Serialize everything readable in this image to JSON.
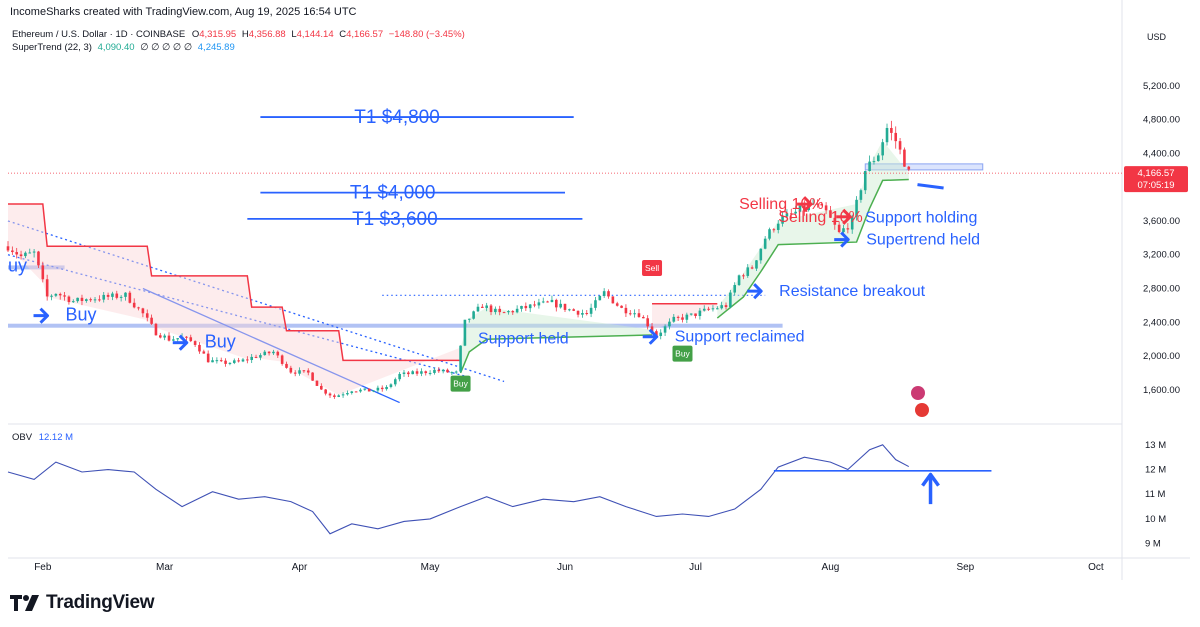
{
  "header": {
    "attribution": "IncomeSharks created with TradingView.com, Aug 19, 2025 16:54 UTC"
  },
  "legend": {
    "symbol": "Ethereum / U.S. Dollar · 1D · COINBASE",
    "o_label": "O",
    "o": "4,315.95",
    "h_label": "H",
    "h": "4,356.88",
    "l_label": "L",
    "l": "4,144.14",
    "c_label": "C",
    "c": "4,166.57",
    "change": "−148.80 (−3.45%)",
    "st_label": "SuperTrend (22, 3)",
    "st_value": "4,090.40",
    "st_empty": "∅ ∅ ∅ ∅ ∅",
    "st_value2": "4,245.89",
    "obv_label": "OBV",
    "obv_value": "12.12 M"
  },
  "price_badge": {
    "price": "4,166.57",
    "countdown": "07:05:19"
  },
  "brand": {
    "name": "TradingView"
  },
  "colors": {
    "up": "#22ab94",
    "down": "#f23645",
    "annotation": "#2962ff",
    "annotation_red": "#f23645",
    "supertrend_up": "#4caf50",
    "supertrend_down": "#f23645"
  },
  "annotations": [
    {
      "id": "t1-4800",
      "text": "T1 $4,800",
      "color": "blue",
      "price": 4830,
      "x_from": "2025-03-23",
      "x_to": "2025-06-03",
      "line": true
    },
    {
      "id": "t1-4000",
      "text": "T1 $4,000",
      "color": "blue",
      "price": 3935,
      "x_from": "2025-03-23",
      "x_to": "2025-06-01",
      "line": true
    },
    {
      "id": "t1-3600",
      "text": "T1 $3,600",
      "color": "blue",
      "price": 3625,
      "x_from": "2025-03-20",
      "x_to": "2025-06-05",
      "line": true
    },
    {
      "id": "buy-1",
      "text": "Buy",
      "color": "blue",
      "price": 2420,
      "x": "2025-02-03",
      "arrow": true
    },
    {
      "id": "buy-2",
      "text": "Buy",
      "color": "blue",
      "price": 2100,
      "x": "2025-03-07",
      "arrow": true
    },
    {
      "id": "buy-edge",
      "text": "uy",
      "color": "blue",
      "price": 3000,
      "x": "2025-01-24"
    },
    {
      "id": "support-held",
      "text": "Support held",
      "color": "blue",
      "price": 2150,
      "x": "2025-05-12"
    },
    {
      "id": "support-reclaimed",
      "text": "Support reclaimed",
      "color": "blue",
      "price": 2170,
      "x": "2025-06-23",
      "arrow": true
    },
    {
      "id": "resistance-breakout",
      "text": "Resistance breakout",
      "color": "blue",
      "price": 2710,
      "x": "2025-07-17",
      "arrow": true
    },
    {
      "id": "selling-1",
      "text": "Selling 10%",
      "color": "red",
      "price": 3740,
      "x": "2025-07-11",
      "arrow": true
    },
    {
      "id": "selling-2",
      "text": "Selling 10%",
      "color": "red",
      "price": 3590,
      "x": "2025-07-20",
      "arrow": true
    },
    {
      "id": "support-holding",
      "text": "Support holding",
      "color": "blue",
      "price": 3580,
      "x": "2025-08-09"
    },
    {
      "id": "supertrend-held",
      "text": "Supertrend held",
      "color": "blue",
      "price": 3320,
      "x": "2025-08-06",
      "arrow": true
    }
  ],
  "signals": [
    {
      "text": "Buy",
      "type": "buy",
      "x": "2025-05-08"
    },
    {
      "text": "Sell",
      "type": "sell",
      "x": "2025-06-21"
    },
    {
      "text": "Buy",
      "type": "buy",
      "x": "2025-06-28"
    }
  ],
  "chart_data": {
    "type": "candlestick",
    "title": "Ethereum / U.S. Dollar · 1D · COINBASE",
    "xlim": [
      "2025-01-24",
      "2025-10-07"
    ],
    "x_ticks": [
      {
        "label": "Feb",
        "date": "2025-02-01"
      },
      {
        "label": "Mar",
        "date": "2025-03-01"
      },
      {
        "label": "Apr",
        "date": "2025-04-01"
      },
      {
        "label": "May",
        "date": "2025-05-01"
      },
      {
        "label": "Jun",
        "date": "2025-06-01"
      },
      {
        "label": "Jul",
        "date": "2025-07-01"
      },
      {
        "label": "Aug",
        "date": "2025-08-01"
      },
      {
        "label": "Sep",
        "date": "2025-09-01"
      },
      {
        "label": "Oct",
        "date": "2025-10-01"
      }
    ],
    "price_axis": {
      "currency": "USD",
      "ylim": [
        1220,
        5600
      ],
      "ticks": [
        "5,200.00",
        "4,800.00",
        "4,400.00",
        "4,000.00",
        "3,600.00",
        "3,200.00",
        "2,800.00",
        "2,400.00",
        "2,000.00",
        "1,600.00"
      ]
    },
    "obv_axis": {
      "ylim": [
        8.5,
        13.6
      ],
      "unit": "M",
      "ticks": [
        "13 M",
        "12 M",
        "11 M",
        "10 M",
        "9 M"
      ]
    },
    "price_path": [
      [
        "2025-01-24",
        3300
      ],
      [
        "2025-01-27",
        3180
      ],
      [
        "2025-01-30",
        3220
      ],
      [
        "2025-02-02",
        2700
      ],
      [
        "2025-02-04",
        2750
      ],
      [
        "2025-02-08",
        2650
      ],
      [
        "2025-02-12",
        2680
      ],
      [
        "2025-02-16",
        2700
      ],
      [
        "2025-02-20",
        2720
      ],
      [
        "2025-02-24",
        2500
      ],
      [
        "2025-02-27",
        2280
      ],
      [
        "2025-03-02",
        2200
      ],
      [
        "2025-03-05",
        2220
      ],
      [
        "2025-03-08",
        2150
      ],
      [
        "2025-03-11",
        1950
      ],
      [
        "2025-03-14",
        1920
      ],
      [
        "2025-03-18",
        1930
      ],
      [
        "2025-03-22",
        2000
      ],
      [
        "2025-03-26",
        2050
      ],
      [
        "2025-03-30",
        1820
      ],
      [
        "2025-04-03",
        1800
      ],
      [
        "2025-04-06",
        1600
      ],
      [
        "2025-04-09",
        1520
      ],
      [
        "2025-04-13",
        1600
      ],
      [
        "2025-04-17",
        1590
      ],
      [
        "2025-04-21",
        1620
      ],
      [
        "2025-04-24",
        1780
      ],
      [
        "2025-04-28",
        1800
      ],
      [
        "2025-05-02",
        1830
      ],
      [
        "2025-05-07",
        1800
      ],
      [
        "2025-05-09",
        2400
      ],
      [
        "2025-05-13",
        2600
      ],
      [
        "2025-05-17",
        2500
      ],
      [
        "2025-05-21",
        2550
      ],
      [
        "2025-05-25",
        2600
      ],
      [
        "2025-05-29",
        2630
      ],
      [
        "2025-06-02",
        2550
      ],
      [
        "2025-06-06",
        2500
      ],
      [
        "2025-06-10",
        2750
      ],
      [
        "2025-06-14",
        2560
      ],
      [
        "2025-06-18",
        2500
      ],
      [
        "2025-06-22",
        2250
      ],
      [
        "2025-06-26",
        2430
      ],
      [
        "2025-06-30",
        2480
      ],
      [
        "2025-07-04",
        2550
      ],
      [
        "2025-07-08",
        2600
      ],
      [
        "2025-07-11",
        2950
      ],
      [
        "2025-07-14",
        3050
      ],
      [
        "2025-07-17",
        3400
      ],
      [
        "2025-07-20",
        3600
      ],
      [
        "2025-07-24",
        3700
      ],
      [
        "2025-07-28",
        3800
      ],
      [
        "2025-07-31",
        3700
      ],
      [
        "2025-08-03",
        3450
      ],
      [
        "2025-08-06",
        3600
      ],
      [
        "2025-08-09",
        4200
      ],
      [
        "2025-08-12",
        4400
      ],
      [
        "2025-08-14",
        4700
      ],
      [
        "2025-08-16",
        4550
      ],
      [
        "2025-08-18",
        4300
      ],
      [
        "2025-08-19",
        4166.57
      ]
    ],
    "supertrend_down": [
      [
        "2025-01-24",
        3800
      ],
      [
        "2025-02-01",
        3800
      ],
      [
        "2025-02-02",
        3300
      ],
      [
        "2025-02-25",
        3300
      ],
      [
        "2025-02-26",
        2950
      ],
      [
        "2025-03-20",
        2950
      ],
      [
        "2025-03-21",
        2580
      ],
      [
        "2025-03-28",
        2580
      ],
      [
        "2025-03-29",
        2300
      ],
      [
        "2025-04-10",
        2300
      ],
      [
        "2025-04-11",
        1950
      ],
      [
        "2025-05-08",
        1950
      ]
    ],
    "supertrend_up": [
      [
        "2025-05-08",
        1800
      ],
      [
        "2025-05-10",
        2050
      ],
      [
        "2025-05-14",
        2200
      ],
      [
        "2025-06-21",
        2250
      ]
    ],
    "supertrend_down2": [
      [
        "2025-06-21",
        2620
      ],
      [
        "2025-07-06",
        2620
      ]
    ],
    "supertrend_up2": [
      [
        "2025-07-06",
        2450
      ],
      [
        "2025-07-12",
        2700
      ],
      [
        "2025-07-16",
        3000
      ],
      [
        "2025-07-20",
        3320
      ],
      [
        "2025-08-07",
        3350
      ],
      [
        "2025-08-10",
        3750
      ],
      [
        "2025-08-13",
        4080
      ],
      [
        "2025-08-19",
        4090
      ]
    ],
    "levels": [
      {
        "name": "resistance",
        "price": 2720,
        "from": "2025-04-20",
        "to": "2025-07-17",
        "style": "dotted"
      },
      {
        "name": "support-band",
        "price": 2360,
        "from": "2025-01-24",
        "to": "2025-07-21",
        "style": "band"
      },
      {
        "name": "support-band-2",
        "price": 3050,
        "from": "2025-01-24",
        "to": "2025-02-06",
        "style": "band"
      },
      {
        "name": "support-box",
        "price": 4240,
        "from": "2025-08-09",
        "to": "2025-09-05",
        "style": "box"
      }
    ],
    "trendlines": [
      {
        "from": [
          "2025-01-24",
          3600
        ],
        "to": [
          "2025-05-18",
          1700
        ],
        "style": "dotted"
      },
      {
        "from": [
          "2025-01-24",
          3200
        ],
        "to": [
          "2025-05-10",
          1750
        ],
        "style": "dotted"
      },
      {
        "from": [
          "2025-02-24",
          2800
        ],
        "to": [
          "2025-04-24",
          1450
        ],
        "style": "solid"
      }
    ],
    "obv": [
      [
        "2025-01-24",
        11.9
      ],
      [
        "2025-01-30",
        11.6
      ],
      [
        "2025-02-04",
        12.3
      ],
      [
        "2025-02-10",
        11.9
      ],
      [
        "2025-02-16",
        12.0
      ],
      [
        "2025-02-22",
        11.9
      ],
      [
        "2025-02-27",
        11.2
      ],
      [
        "2025-03-05",
        10.5
      ],
      [
        "2025-03-12",
        11.1
      ],
      [
        "2025-03-18",
        10.8
      ],
      [
        "2025-03-24",
        10.9
      ],
      [
        "2025-03-30",
        10.7
      ],
      [
        "2025-04-04",
        10.3
      ],
      [
        "2025-04-08",
        9.4
      ],
      [
        "2025-04-13",
        9.8
      ],
      [
        "2025-04-19",
        9.6
      ],
      [
        "2025-04-25",
        9.9
      ],
      [
        "2025-05-01",
        10.0
      ],
      [
        "2025-05-08",
        10.5
      ],
      [
        "2025-05-14",
        10.9
      ],
      [
        "2025-05-20",
        10.5
      ],
      [
        "2025-05-27",
        10.8
      ],
      [
        "2025-06-03",
        10.7
      ],
      [
        "2025-06-09",
        10.9
      ],
      [
        "2025-06-15",
        10.5
      ],
      [
        "2025-06-22",
        10.1
      ],
      [
        "2025-06-28",
        10.2
      ],
      [
        "2025-07-04",
        10.1
      ],
      [
        "2025-07-10",
        10.4
      ],
      [
        "2025-07-16",
        11.2
      ],
      [
        "2025-07-20",
        12.1
      ],
      [
        "2025-07-26",
        12.5
      ],
      [
        "2025-08-01",
        12.3
      ],
      [
        "2025-08-05",
        12.0
      ],
      [
        "2025-08-10",
        12.8
      ],
      [
        "2025-08-13",
        13.0
      ],
      [
        "2025-08-16",
        12.4
      ],
      [
        "2025-08-19",
        12.12
      ]
    ],
    "obv_support": {
      "value": 11.95,
      "from": "2025-07-19",
      "to": "2025-09-07"
    }
  }
}
